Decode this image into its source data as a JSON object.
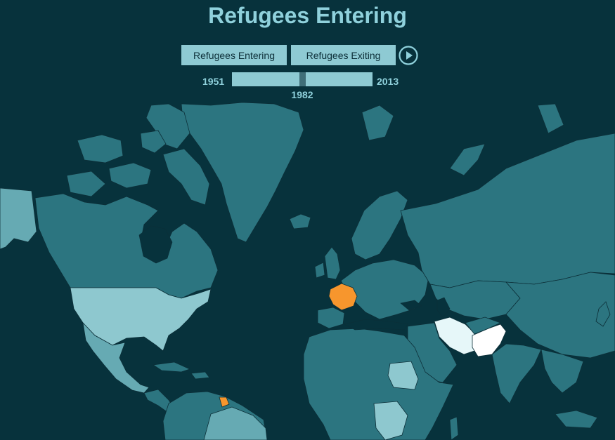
{
  "title": "Refugees Entering",
  "buttons": {
    "entering_label": "Refugees Entering",
    "exiting_label": "Refugees Exiting",
    "play_icon": "play-circle-icon"
  },
  "timeline": {
    "start_year": "1951",
    "end_year": "2013",
    "current_year": "1982",
    "min": 1951,
    "max": 2013,
    "value": 1982
  },
  "colors": {
    "background": "#07323c",
    "title": "#8fd1dc",
    "control_bg": "#8ecad3",
    "land_default": "#2c7580",
    "land_medium": "#66aab3",
    "land_light": "#8ec8cf",
    "highlight_max": "#ffffff",
    "highlight_orange": "#f7962d"
  },
  "map": {
    "highlighted_regions": [
      {
        "name": "France",
        "level": "orange"
      },
      {
        "name": "French Guiana",
        "level": "orange"
      },
      {
        "name": "Iran",
        "level": "very-high"
      },
      {
        "name": "Pakistan",
        "level": "highest"
      },
      {
        "name": "United States",
        "level": "medium"
      },
      {
        "name": "Alaska",
        "level": "medium"
      },
      {
        "name": "Sudan",
        "level": "medium"
      },
      {
        "name": "DR Congo",
        "level": "medium"
      }
    ]
  }
}
